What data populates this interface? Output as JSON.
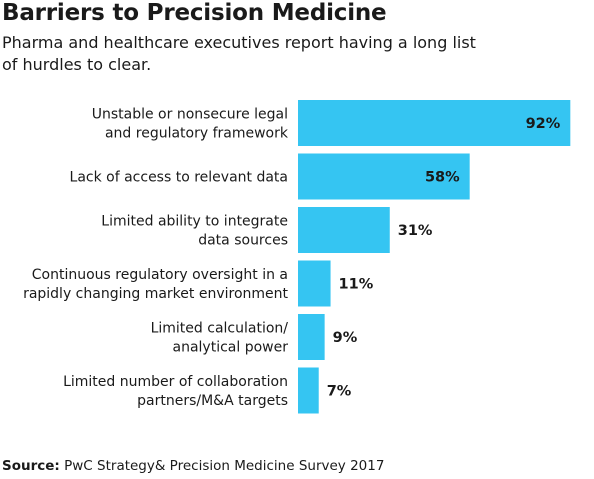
{
  "header": {
    "title": "Barriers to Precision Medicine",
    "subtitle": "Pharma and healthcare executives report having a long list of hurdles to clear."
  },
  "source": {
    "label": "Source:",
    "text": "PwC Strategy& Precision Medicine Survey 2017"
  },
  "colors": {
    "bar": "#35c5f2",
    "text": "#1a1a1a"
  },
  "chart_data": {
    "type": "bar",
    "orientation": "horizontal",
    "categories": [
      [
        "Unstable or nonsecure legal",
        "and regulatory framework"
      ],
      [
        "Lack of access to relevant data"
      ],
      [
        "Limited ability to integrate",
        "data sources"
      ],
      [
        "Continuous regulatory oversight in a",
        "rapidly changing market environment"
      ],
      [
        "Limited calculation/",
        "analytical power"
      ],
      [
        "Limited number of collaboration",
        "partners/M&A targets"
      ]
    ],
    "values": [
      92,
      58,
      31,
      11,
      9,
      7
    ],
    "value_labels": [
      "92%",
      "58%",
      "31%",
      "11%",
      "9%",
      "7%"
    ],
    "unit": "%",
    "xlim": [
      0,
      100
    ],
    "grid": false,
    "legend": "none"
  }
}
